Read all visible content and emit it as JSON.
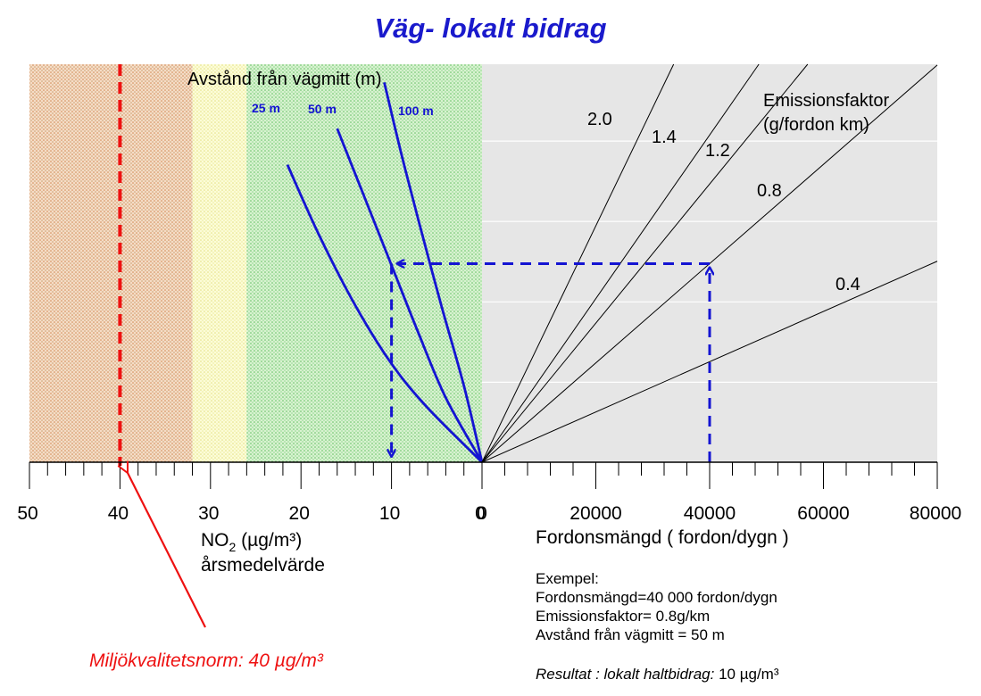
{
  "title": "Väg- lokalt bidrag",
  "chart_data": [
    {
      "type": "line",
      "side": "left",
      "description_label": "Avstånd från vägmitt (m)",
      "xlabel": "NO",
      "xlabel_sub": "2",
      "xlabel_unit": " (µg/m³)",
      "xlabel_line2": "årsmedelvärde",
      "xlim": [
        50,
        0
      ],
      "xticks": [
        50,
        40,
        30,
        20,
        10,
        0
      ],
      "xtick_labels": [
        "50",
        "40",
        "30",
        "20",
        "10",
        "0"
      ],
      "background_bands": [
        {
          "from": 50,
          "to": 32,
          "color": "#f0c8a8"
        },
        {
          "from": 32,
          "to": 26,
          "color": "#fafac0"
        },
        {
          "from": 26,
          "to": 0,
          "color": "#c8ecc0"
        }
      ],
      "series": [
        {
          "name": "25 m",
          "points": [
            [
              0,
              0
            ],
            [
              6,
              0.27
            ],
            [
              10,
              0.49
            ],
            [
              14,
              0.78
            ],
            [
              18,
              1.13
            ],
            [
              21.5,
              1.48
            ]
          ]
        },
        {
          "name": "50 m",
          "points": [
            [
              0,
              0
            ],
            [
              4,
              0.32
            ],
            [
              7,
              0.64
            ],
            [
              10,
              0.98
            ],
            [
              13,
              1.32
            ],
            [
              16,
              1.66
            ]
          ]
        },
        {
          "name": "100 m",
          "points": [
            [
              0,
              0
            ],
            [
              2,
              0.38
            ],
            [
              4.5,
              0.78
            ],
            [
              7,
              1.2
            ],
            [
              9,
              1.55
            ],
            [
              10.8,
              1.89
            ]
          ]
        }
      ],
      "series_color": "#1414d2",
      "reference_line": {
        "value": 40,
        "color": "#ee1111",
        "label": "Miljökvalitetsnorm: 40 µg/m³"
      }
    },
    {
      "type": "line",
      "side": "right",
      "xlabel": "Fordonsmängd ( fordon/dygn )",
      "xlim": [
        0,
        80000
      ],
      "xticks": [
        0,
        20000,
        40000,
        60000,
        80000
      ],
      "xtick_labels": [
        "0",
        "20000",
        "40000",
        "60000",
        "80000"
      ],
      "ylim": [
        0,
        2
      ],
      "legend_title": "Emissionsfaktor",
      "legend_title_line2": "(g/fordon km)",
      "series": [
        {
          "name": "2.0",
          "slope_per_vehicle": 5.88e-05
        },
        {
          "name": "1.4",
          "slope_per_vehicle": 4.07e-05
        },
        {
          "name": "1.2",
          "slope_per_vehicle": 3.46e-05
        },
        {
          "name": "0.8",
          "slope_per_vehicle": 2.47e-05
        },
        {
          "name": "0.4",
          "slope_per_vehicle": 1.25e-05
        }
      ],
      "background_color": "#e6e6e6"
    }
  ],
  "example": {
    "heading": "Exempel:",
    "line1": "Fordonsmängd=40 000 fordon/dygn",
    "line2": "Emissionsfaktor= 0.8g/km",
    "line3": "Avstånd från vägmitt = 50 m",
    "result_label": "Resultat :  lokalt haltbidrag:",
    "result_value": " 10 µg/m³",
    "vehicles": 40000,
    "emission_series": "0.8",
    "distance_series": "50 m",
    "no2_result": 10,
    "arrow_color": "#1414d2"
  }
}
